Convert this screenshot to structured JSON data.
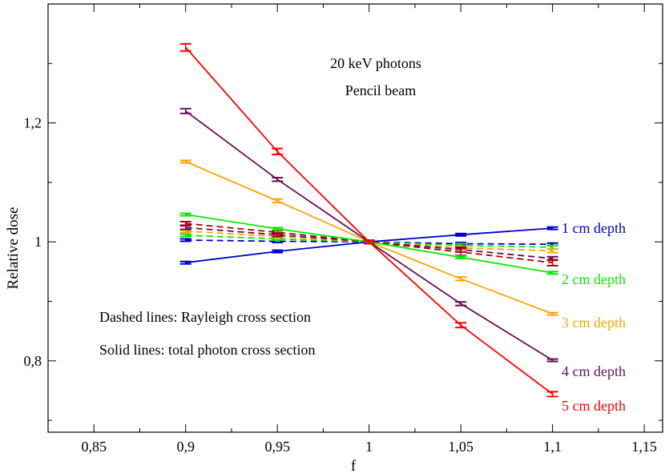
{
  "chart_data": {
    "type": "line",
    "xlabel": "f",
    "ylabel": "Relative dose",
    "xlim": [
      0.825,
      1.16
    ],
    "ylim": [
      0.68,
      1.4
    ],
    "x_ticks": [
      {
        "value": 0.85,
        "label": "0,85"
      },
      {
        "value": 0.9,
        "label": "0,9"
      },
      {
        "value": 0.95,
        "label": "0,95"
      },
      {
        "value": 1.0,
        "label": "1"
      },
      {
        "value": 1.05,
        "label": "1,05"
      },
      {
        "value": 1.1,
        "label": "1,1"
      },
      {
        "value": 1.15,
        "label": "1,15"
      }
    ],
    "y_ticks": [
      {
        "value": 0.8,
        "label": "0,8"
      },
      {
        "value": 1.0,
        "label": "1"
      },
      {
        "value": 1.2,
        "label": "1,2"
      }
    ],
    "y_minor_ticks": [
      0.7,
      0.9,
      1.1,
      1.3
    ],
    "x": [
      0.9,
      0.95,
      1.0,
      1.05,
      1.1
    ],
    "annotations": {
      "title_line1": "20 keV photons",
      "title_line2": "Pencil beam",
      "legend_dashed": "Dashed lines: Rayleigh cross section",
      "legend_solid": "Solid lines: total photon cross section"
    },
    "series": [
      {
        "name": "1 cm depth",
        "style": "solid",
        "color": "#0000cc",
        "values": [
          0.965,
          0.984,
          1.0,
          1.012,
          1.023
        ],
        "errors": [
          0.002,
          0.002,
          0.002,
          0.002,
          0.002
        ]
      },
      {
        "name": "2 cm depth",
        "style": "solid",
        "color": "#00ee00",
        "values": [
          1.046,
          1.022,
          1.0,
          0.974,
          0.948
        ],
        "errors": [
          0.002,
          0.002,
          0.002,
          0.002,
          0.002
        ]
      },
      {
        "name": "3 cm depth",
        "style": "solid",
        "color": "#ffa500",
        "values": [
          1.135,
          1.069,
          1.0,
          0.938,
          0.879
        ],
        "errors": [
          0.002,
          0.003,
          0.002,
          0.003,
          0.002
        ]
      },
      {
        "name": "4 cm depth",
        "style": "solid",
        "color": "#6a0d5a",
        "values": [
          1.22,
          1.105,
          1.0,
          0.896,
          0.801
        ],
        "errors": [
          0.004,
          0.003,
          0.002,
          0.003,
          0.002
        ]
      },
      {
        "name": "5 cm depth",
        "style": "solid",
        "color": "#ff0000",
        "values": [
          1.327,
          1.152,
          1.0,
          0.86,
          0.744
        ],
        "errors": [
          0.006,
          0.005,
          0.003,
          0.004,
          0.004
        ]
      },
      {
        "style": "dashed",
        "color": "#0000cc",
        "values": [
          1.003,
          1.001,
          1.0,
          0.997,
          0.996
        ],
        "errors": [
          0.002,
          0.002,
          0.002,
          0.002,
          0.002
        ]
      },
      {
        "style": "dashed",
        "color": "#00ee00",
        "values": [
          1.011,
          1.005,
          1.0,
          0.994,
          0.991
        ],
        "errors": [
          0.002,
          0.002,
          0.002,
          0.003,
          0.003
        ]
      },
      {
        "style": "dashed",
        "color": "#ffa500",
        "values": [
          1.018,
          1.009,
          1.0,
          0.99,
          0.985
        ],
        "errors": [
          0.002,
          0.002,
          0.002,
          0.003,
          0.003
        ]
      },
      {
        "style": "dashed",
        "color": "#6a0d5a",
        "values": [
          1.024,
          1.012,
          1.0,
          0.987,
          0.972
        ],
        "errors": [
          0.003,
          0.003,
          0.002,
          0.004,
          0.003
        ]
      },
      {
        "style": "dashed",
        "color": "#b00000",
        "values": [
          1.031,
          1.016,
          1.0,
          0.983,
          0.965
        ],
        "errors": [
          0.003,
          0.003,
          0.002,
          0.006,
          0.005
        ]
      }
    ]
  }
}
